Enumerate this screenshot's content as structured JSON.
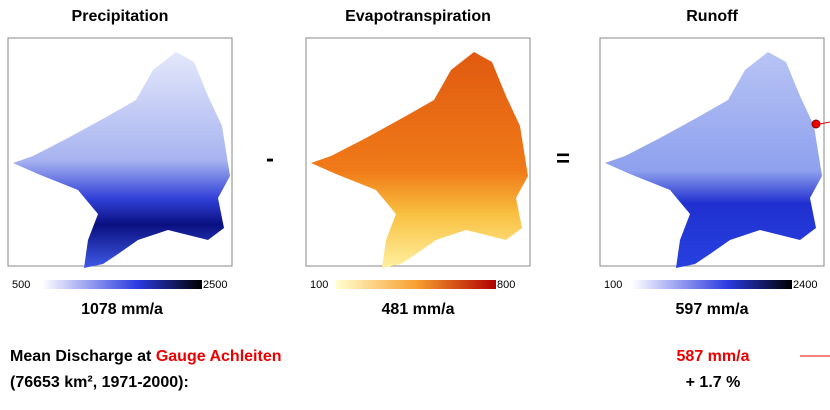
{
  "panels": [
    {
      "title": "Precipitation",
      "scale_min": 500,
      "scale_max": 2500,
      "mean": "1078 mm/a"
    },
    {
      "title": "Evapotranspiration",
      "scale_min": 100,
      "scale_max": 800,
      "mean": "481 mm/a"
    },
    {
      "title": "Runoff",
      "scale_min": 100,
      "scale_max": 2400,
      "mean": "597 mm/a"
    }
  ],
  "operators": [
    "-",
    "="
  ],
  "discharge": {
    "label": "Mean Discharge at ",
    "gauge": "Gauge Achleiten",
    "period": "(76653 km², 1971-2000):",
    "value": "587 mm/a",
    "difference": "+ 1.7 %"
  }
}
